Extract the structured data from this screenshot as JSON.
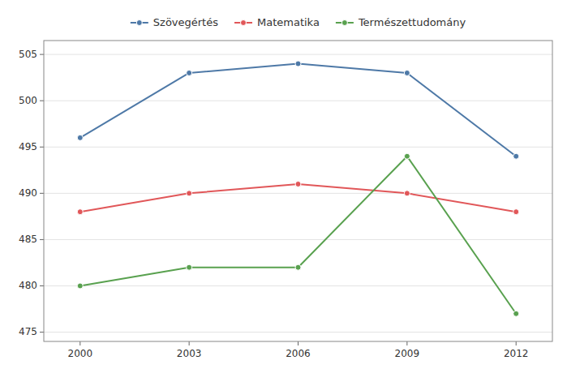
{
  "chart_data": {
    "type": "line",
    "x": [
      2000,
      2003,
      2006,
      2009,
      2012
    ],
    "series": [
      {
        "name": "Szövegértés",
        "color": "#4e79a7",
        "values": [
          496,
          503,
          504,
          503,
          494
        ]
      },
      {
        "name": "Matematika",
        "color": "#e15759",
        "values": [
          488,
          490,
          491,
          490,
          488
        ]
      },
      {
        "name": "Természettudomány",
        "color": "#59a14f",
        "values": [
          480,
          482,
          482,
          494,
          477
        ]
      }
    ],
    "marker": "circle",
    "xlim": [
      1999,
      2013
    ],
    "xticks": [
      2000,
      2003,
      2006,
      2009,
      2012
    ],
    "ylim": [
      474,
      506.5
    ],
    "yticks": [
      475,
      480,
      485,
      490,
      495,
      500,
      505
    ],
    "grid": true,
    "legend": "top"
  }
}
